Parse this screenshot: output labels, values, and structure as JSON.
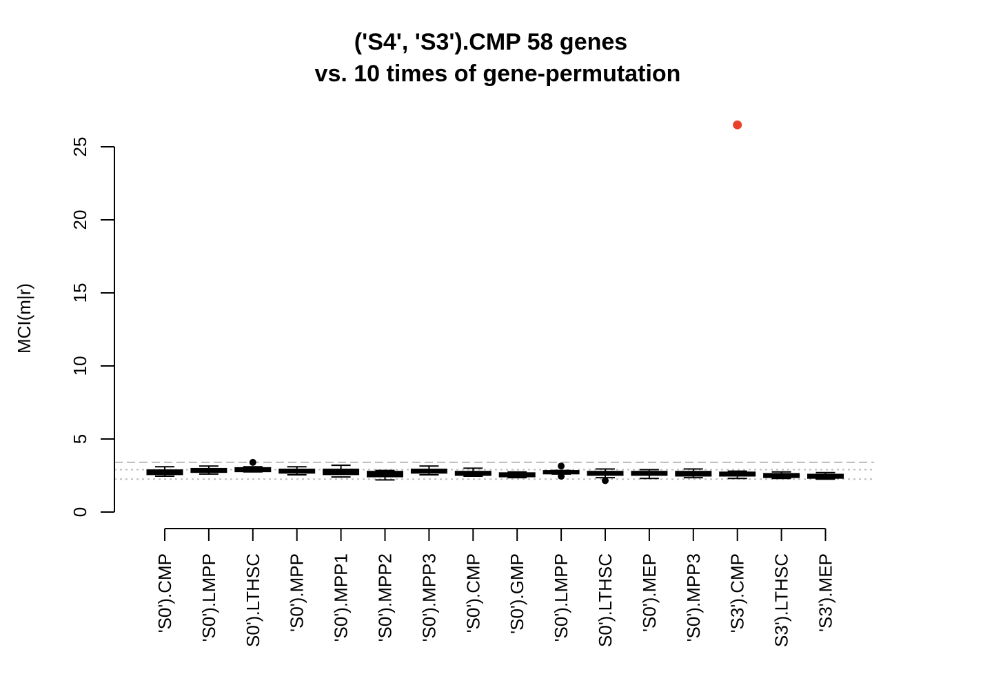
{
  "chart_data": {
    "type": "box",
    "title": "('S4', 'S3').CMP 58 genes",
    "subtitle": "vs.  10 times of gene-permutation",
    "xlabel": "",
    "ylabel": "MCI(m|r)",
    "ylim": [
      0,
      25
    ],
    "yticks": [
      0,
      5,
      10,
      15,
      20,
      25
    ],
    "reference_lines": [
      {
        "style": "dashed",
        "value": 3.4
      },
      {
        "style": "dotted",
        "value": 2.9
      },
      {
        "style": "dotted",
        "value": 2.25
      }
    ],
    "categories": [
      "'S0').CMP",
      "'S0').LMPP",
      "S0').LTHSC",
      "'S0').MPP",
      "'S0').MPP1",
      "'S0').MPP2",
      "'S0').MPP3",
      "'S0').CMP",
      "'S0').GMP",
      "'S0').LMPP",
      "S0').LTHSC",
      "'S0').MEP",
      "'S0').MPP3",
      "'S3').CMP",
      "S3').LTHSC",
      "'S3').MEP"
    ],
    "boxes": [
      {
        "min": 2.45,
        "q1": 2.6,
        "median": 2.75,
        "q3": 2.85,
        "max": 3.1,
        "outliers": []
      },
      {
        "min": 2.6,
        "q1": 2.75,
        "median": 2.85,
        "q3": 2.95,
        "max": 3.15,
        "outliers": []
      },
      {
        "min": 2.75,
        "q1": 2.8,
        "median": 2.9,
        "q3": 3.0,
        "max": 3.1,
        "outliers": [
          3.4
        ]
      },
      {
        "min": 2.55,
        "q1": 2.7,
        "median": 2.8,
        "q3": 2.9,
        "max": 3.1,
        "outliers": []
      },
      {
        "min": 2.4,
        "q1": 2.6,
        "median": 2.75,
        "q3": 2.9,
        "max": 3.2,
        "outliers": []
      },
      {
        "min": 2.2,
        "q1": 2.45,
        "median": 2.6,
        "q3": 2.75,
        "max": 2.85,
        "outliers": []
      },
      {
        "min": 2.55,
        "q1": 2.7,
        "median": 2.8,
        "q3": 2.9,
        "max": 3.15,
        "outliers": []
      },
      {
        "min": 2.45,
        "q1": 2.55,
        "median": 2.65,
        "q3": 2.75,
        "max": 3.0,
        "outliers": []
      },
      {
        "min": 2.35,
        "q1": 2.45,
        "median": 2.55,
        "q3": 2.65,
        "max": 2.75,
        "outliers": []
      },
      {
        "min": 2.6,
        "q1": 2.65,
        "median": 2.75,
        "q3": 2.8,
        "max": 2.85,
        "outliers": [
          3.15,
          2.45
        ]
      },
      {
        "min": 2.35,
        "q1": 2.55,
        "median": 2.65,
        "q3": 2.75,
        "max": 2.95,
        "outliers": [
          2.15
        ]
      },
      {
        "min": 2.3,
        "q1": 2.55,
        "median": 2.65,
        "q3": 2.75,
        "max": 2.9,
        "outliers": []
      },
      {
        "min": 2.35,
        "q1": 2.5,
        "median": 2.6,
        "q3": 2.75,
        "max": 2.95,
        "outliers": []
      },
      {
        "min": 2.3,
        "q1": 2.5,
        "median": 2.6,
        "q3": 2.7,
        "max": 2.8,
        "outliers": []
      },
      {
        "min": 2.3,
        "q1": 2.4,
        "median": 2.5,
        "q3": 2.6,
        "max": 2.75,
        "outliers": []
      },
      {
        "min": 2.25,
        "q1": 2.35,
        "median": 2.45,
        "q3": 2.55,
        "max": 2.7,
        "outliers": []
      }
    ],
    "highlight_point": {
      "category_index": 13,
      "value": 26.5,
      "color": "#e8402a"
    },
    "colors": {
      "box": "#000000",
      "reference": "#bbbbbb",
      "highlight": "#e8402a"
    }
  }
}
